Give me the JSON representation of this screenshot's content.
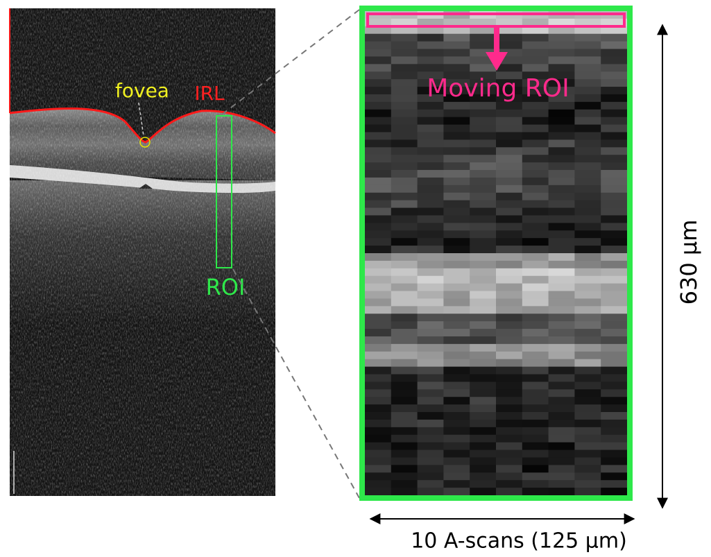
{
  "labels": {
    "fovea": "fovea",
    "irl": "IRL",
    "roi": "ROI",
    "moving_roi": "Moving ROI",
    "depth": "630 µm",
    "width": "10 A-scans (125 µm)"
  }
}
